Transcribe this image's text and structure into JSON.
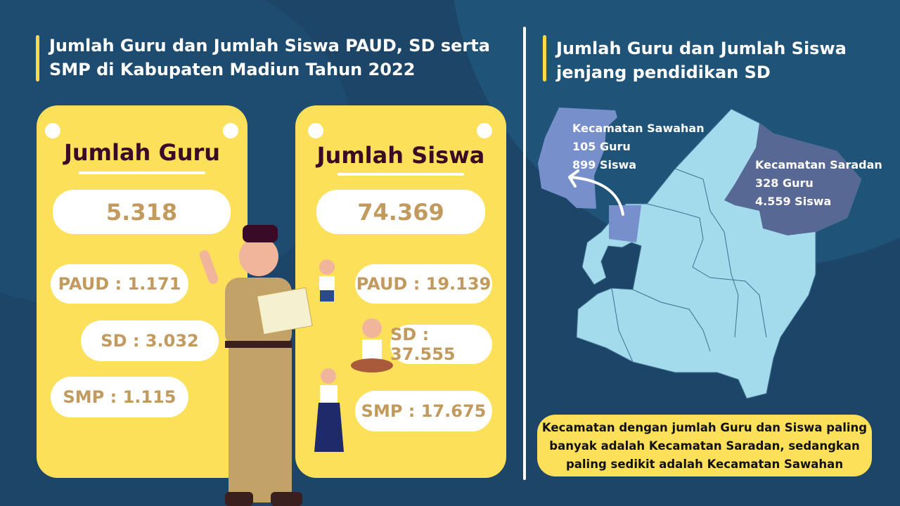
{
  "left": {
    "title_line1": "Jumlah Guru dan Jumlah Siswa PAUD, SD serta",
    "title_line2": "SMP di Kabupaten Madiun Tahun 2022",
    "guru": {
      "title": "Jumlah Guru",
      "total": "5.318",
      "paud": "PAUD : 1.171",
      "sd": "SD : 3.032",
      "smp": "SMP : 1.115"
    },
    "siswa": {
      "title": "Jumlah Siswa",
      "total": "74.369",
      "paud": "PAUD : 19.139",
      "sd": "SD : 37.555",
      "smp": "SMP : 17.675"
    }
  },
  "right": {
    "title_line1": "Jumlah Guru dan Jumlah Siswa",
    "title_line2": "jenjang pendidikan SD",
    "sawahan": {
      "name": "Kecamatan Sawahan",
      "guru": "105 Guru",
      "siswa": "899 Siswa"
    },
    "saradan": {
      "name": "Kecamatan Saradan",
      "guru": "328 Guru",
      "siswa": "4.559 Siswa"
    },
    "note_line1": "Kecamatan dengan jumlah Guru dan Siswa paling",
    "note_line2": "banyak adalah Kecamatan Saradan, sedangkan",
    "note_line3": "paling sedikit adalah Kecamatan Sawahan"
  },
  "colors": {
    "background": "#1c4568",
    "card": "#fde05a",
    "value": "#c29a5d",
    "map": "#a3dbec",
    "sawahan": "#7790cc",
    "saradan": "#576894"
  }
}
